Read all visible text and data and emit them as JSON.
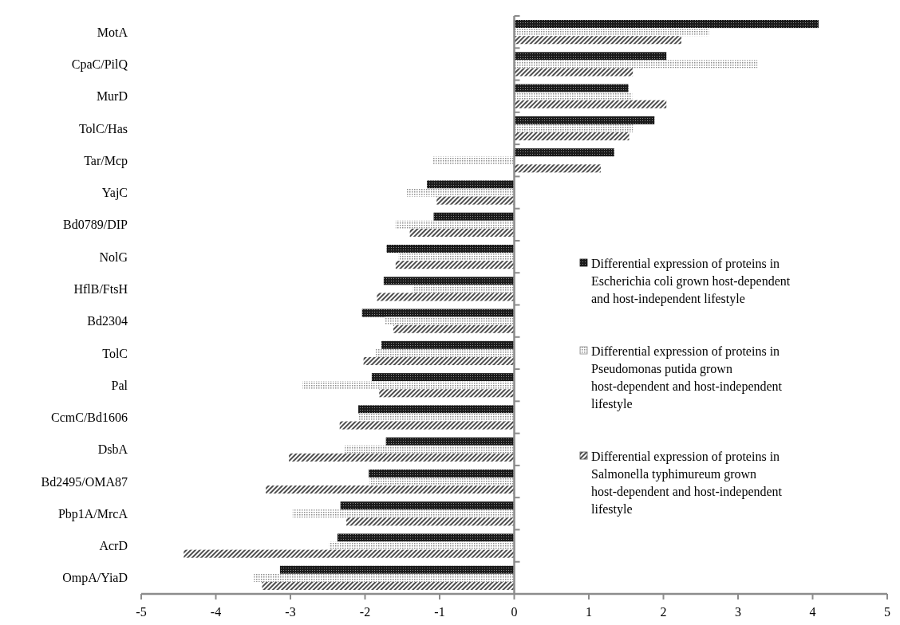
{
  "chart_data": {
    "type": "bar",
    "orientation": "horizontal",
    "categories": [
      "MotA",
      "CpaC/PilQ",
      "MurD",
      "TolC/Has",
      "Tar/Mcp",
      "YajC",
      "Bd0789/DIP",
      "NolG",
      "HflB/FtsH",
      "Bd2304",
      "TolC",
      "Pal",
      "CcmC/Bd1606",
      "DsbA",
      "Bd2495/OMA87",
      "Pbp1A/MrcA",
      "AcrD",
      "OmpA/YiaD"
    ],
    "series": [
      {
        "name": "Differential expression of proteins in Escherichia coli grown host-dependent and host-independent lifestyle",
        "color": "#1a1a1a",
        "values": [
          4.08,
          2.04,
          1.53,
          1.88,
          1.34,
          -1.17,
          -1.08,
          -1.71,
          -1.75,
          -2.04,
          -1.78,
          -1.91,
          -2.09,
          -1.72,
          -1.95,
          -2.33,
          -2.37,
          -3.14
        ]
      },
      {
        "name": "Differential expression of proteins in Pseudomonas putida grown host-dependent and host-independent lifestyle",
        "color": "#8c8c8c",
        "values": [
          2.61,
          3.26,
          1.58,
          1.59,
          -1.09,
          -1.44,
          -1.59,
          -1.55,
          -1.36,
          -1.73,
          -1.86,
          -2.84,
          -2.08,
          -2.27,
          -1.94,
          -2.97,
          -2.48,
          -3.49
        ]
      },
      {
        "name": "Differential expression of proteins in Salmonella typhimureum grown host-dependent and host-independent lifestyle",
        "color": "#4d4d4d",
        "values": [
          2.24,
          1.59,
          2.04,
          1.54,
          1.16,
          -1.04,
          -1.4,
          -1.59,
          -1.84,
          -1.62,
          -2.02,
          -1.81,
          -2.34,
          -3.02,
          -3.33,
          -2.25,
          -4.43,
          -3.38
        ]
      }
    ],
    "xlim": [
      -5,
      5
    ],
    "xticks": [
      -5,
      -4,
      -3,
      -2,
      -1,
      0,
      1,
      2,
      3,
      4,
      5
    ],
    "legend": "right"
  }
}
